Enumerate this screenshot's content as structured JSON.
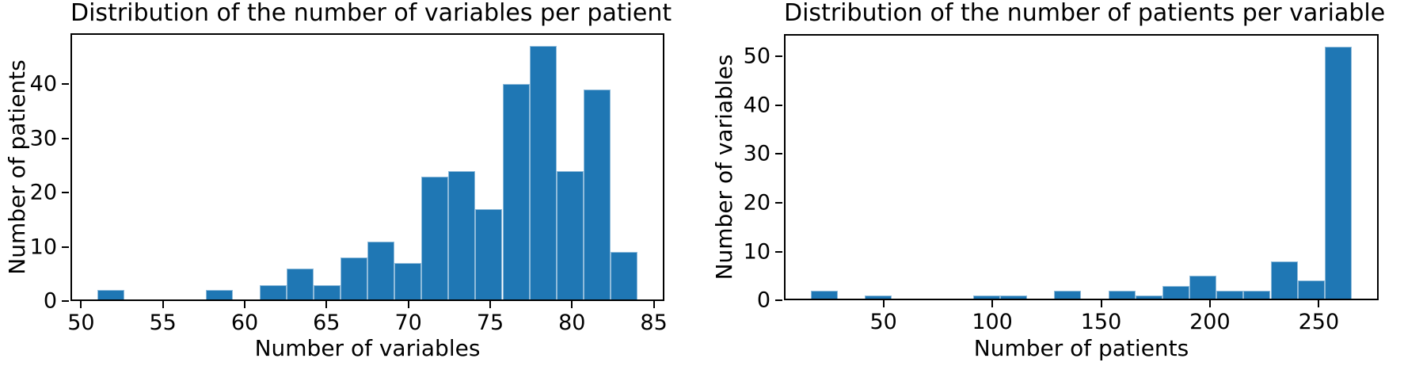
{
  "figure": {
    "background": "#ffffff"
  },
  "colors": {
    "bar_fill": "#1f77b4",
    "bar_edge": "rgba(255,255,255,0.5)",
    "axis": "#000000",
    "text": "#000000"
  },
  "chart_data": [
    {
      "type": "bar",
      "subtype": "histogram",
      "title": "Distribution of the number of variables per patient",
      "xlabel": "Number of variables",
      "ylabel": "Number of patients",
      "bin_edges": [
        51.0,
        52.65,
        54.3,
        55.95,
        57.6,
        59.25,
        60.9,
        62.55,
        64.2,
        65.85,
        67.5,
        69.15,
        70.8,
        72.45,
        74.1,
        75.75,
        77.4,
        79.05,
        80.7,
        82.35,
        84.0
      ],
      "counts": [
        2,
        0,
        0,
        0,
        2,
        0,
        3,
        6,
        3,
        8,
        11,
        7,
        23,
        24,
        17,
        40,
        47,
        24,
        39,
        9
      ],
      "total_count": 265,
      "xlim": [
        49.35,
        85.65
      ],
      "ylim": [
        0,
        49.35
      ],
      "x_ticks": [
        50,
        55,
        60,
        65,
        70,
        75,
        80,
        85
      ],
      "y_ticks": [
        0,
        10,
        20,
        30,
        40
      ],
      "grid": false,
      "legend": null
    },
    {
      "type": "bar",
      "subtype": "histogram",
      "title": "Distribution of the number of patients per variable",
      "xlabel": "Number of patients",
      "ylabel": "Number of variables",
      "bin_edges": [
        16.7,
        29.12,
        41.54,
        53.96,
        66.38,
        78.8,
        91.22,
        103.64,
        116.06,
        128.48,
        140.9,
        153.32,
        165.74,
        178.16,
        190.58,
        203.0,
        215.42,
        227.84,
        240.26,
        252.68,
        265.1
      ],
      "counts": [
        2,
        0,
        1,
        0,
        0,
        0,
        1,
        1,
        0,
        2,
        0,
        2,
        1,
        3,
        5,
        2,
        2,
        8,
        4,
        52
      ],
      "total_count": 86,
      "xlim": [
        4.28,
        277.52
      ],
      "ylim": [
        0,
        54.6
      ],
      "x_ticks": [
        50,
        100,
        150,
        200,
        250
      ],
      "y_ticks": [
        0,
        10,
        20,
        30,
        40,
        50
      ],
      "grid": false,
      "legend": null
    }
  ]
}
